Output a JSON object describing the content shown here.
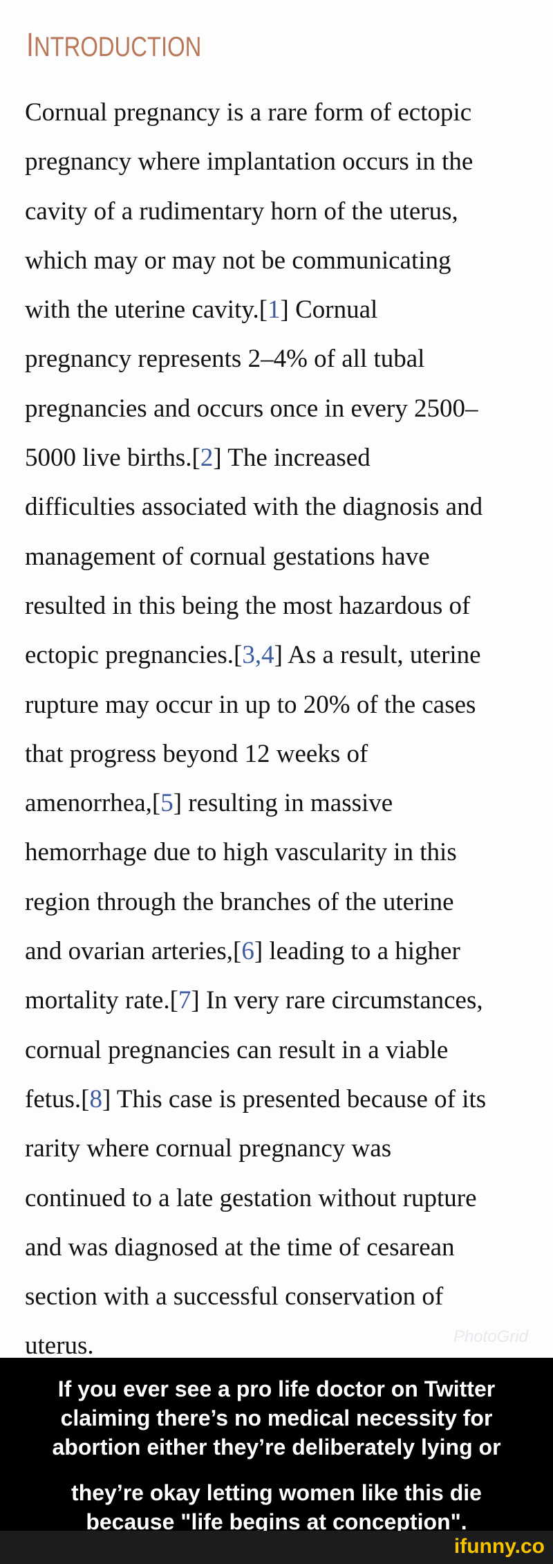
{
  "heading": {
    "first": "I",
    "rest": "NTRODUCTION"
  },
  "lines": [
    [
      "Cornual pregnancy is a rare form of ectopic"
    ],
    [
      "pregnancy where implantation occurs in the"
    ],
    [
      "cavity of a rudimentary horn of the uterus,"
    ],
    [
      "which may or may not be communicating"
    ],
    [
      "with the uterine cavity.[",
      "1",
      "] Cornual"
    ],
    [
      "pregnancy represents 2–4% of all tubal"
    ],
    [
      "pregnancies and occurs once in every 2500–"
    ],
    [
      "5000 live births.[",
      "2",
      "] The increased"
    ],
    [
      "difficulties associated with the diagnosis and"
    ],
    [
      "management of cornual gestations have"
    ],
    [
      "resulted in this being the most hazardous of"
    ],
    [
      "ectopic pregnancies.[",
      "3,4",
      "] As a result, uterine"
    ],
    [
      "rupture may occur in up to 20% of the cases"
    ],
    [
      "that progress beyond 12 weeks of"
    ],
    [
      "amenorrhea,[",
      "5",
      "] resulting in massive"
    ],
    [
      "hemorrhage due to high vascularity in this"
    ],
    [
      "region through the branches of the uterine"
    ],
    [
      "and ovarian arteries,[",
      "6",
      "] leading to a higher"
    ],
    [
      "mortality rate.[",
      "7",
      "] In very rare circumstances,"
    ],
    [
      "cornual pregnancies can result in a viable"
    ],
    [
      "fetus.[",
      "8",
      "] This case is presented because of its"
    ],
    [
      "rarity where cornual pregnancy was"
    ],
    [
      "continued to a late gestation without rupture"
    ],
    [
      "and was diagnosed at the time of cesarean"
    ],
    [
      "section with a successful conservation of"
    ],
    [
      "uterus."
    ]
  ],
  "watermark": "PhotoGrid",
  "caption": {
    "paragraph1": [
      "If you ever see a pro life doctor on Twitter",
      "claiming there’s no medical necessity for",
      "abortion either they’re deliberately lying or"
    ],
    "paragraph2": [
      "they’re okay letting women like this die",
      "because \"life begins at conception\"."
    ]
  },
  "footer": {
    "logo": "ifunny.co"
  },
  "colors": {
    "heading": "#b9785a",
    "citation": "#3b5aa0",
    "caption_bg": "#000000",
    "logo": "#f7c300"
  }
}
